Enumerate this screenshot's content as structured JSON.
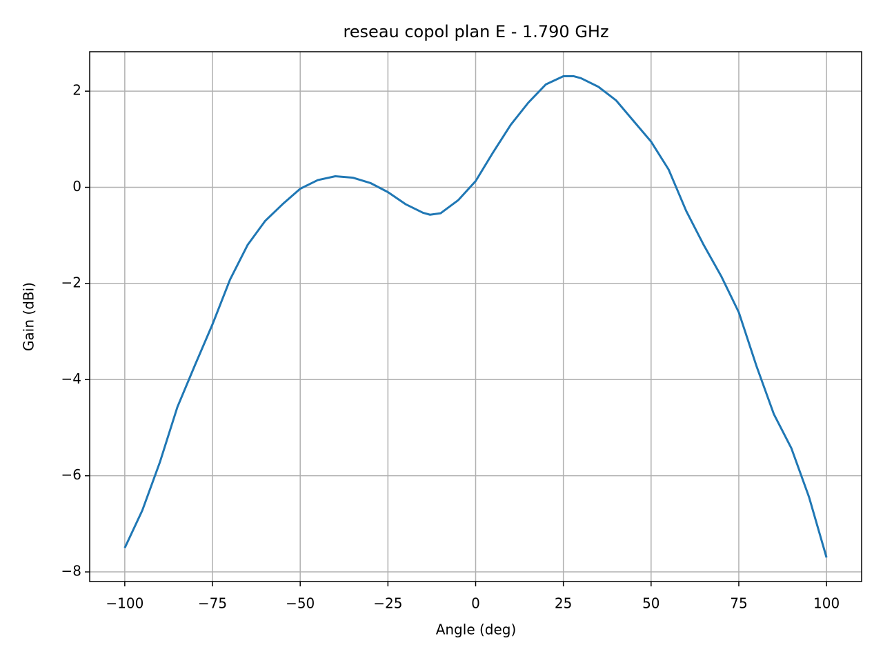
{
  "chart_data": {
    "type": "line",
    "title": "reseau copol plan E - 1.790 GHz",
    "x_label": "Angle (deg)",
    "y_label": "Gain (dBi)",
    "x": [
      -100,
      -95,
      -90,
      -85,
      -80,
      -75,
      -70,
      -65,
      -60,
      -55,
      -50,
      -45,
      -40,
      -35,
      -30,
      -25,
      -20,
      -15,
      -13,
      -10,
      -5,
      0,
      5,
      10,
      15,
      20,
      25,
      28,
      30,
      35,
      40,
      45,
      50,
      55,
      60,
      65,
      70,
      75,
      80,
      85,
      90,
      95,
      100
    ],
    "series": [
      {
        "name": "copol",
        "color": "#1f77b4",
        "values": [
          -7.5,
          -6.72,
          -5.72,
          -4.57,
          -3.7,
          -2.85,
          -1.92,
          -1.2,
          -0.7,
          -0.35,
          -0.03,
          0.15,
          0.23,
          0.2,
          0.09,
          -0.1,
          -0.35,
          -0.53,
          -0.57,
          -0.54,
          -0.27,
          0.13,
          0.73,
          1.3,
          1.76,
          2.14,
          2.31,
          2.31,
          2.27,
          2.09,
          1.81,
          1.38,
          0.95,
          0.37,
          -0.49,
          -1.2,
          -1.85,
          -2.6,
          -3.71,
          -4.72,
          -5.43,
          -6.44,
          -7.7
        ]
      }
    ],
    "xlim": [
      -110,
      110
    ],
    "ylim": [
      -8.2,
      2.82
    ],
    "xticks": [
      {
        "value": -100,
        "label": "−100"
      },
      {
        "value": -75,
        "label": "−75"
      },
      {
        "value": -50,
        "label": "−50"
      },
      {
        "value": -25,
        "label": "−25"
      },
      0,
      25,
      50,
      75,
      100
    ],
    "yticks": [
      {
        "value": -8,
        "label": "−8"
      },
      {
        "value": -6,
        "label": "−6"
      },
      {
        "value": -4,
        "label": "−4"
      },
      {
        "value": -2,
        "label": "−2"
      },
      0,
      2
    ],
    "grid": true
  }
}
